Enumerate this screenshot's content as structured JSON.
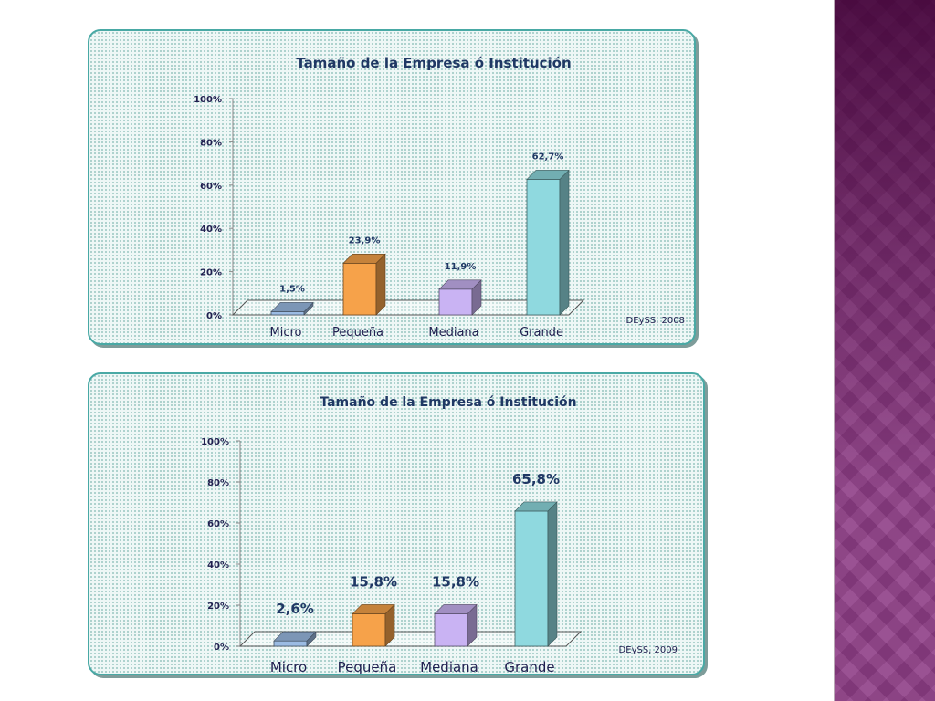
{
  "colors": {
    "side_band": "#8e3d86",
    "panel_border": "#49a9a5",
    "bar_micro": "#9bbbe3",
    "bar_pequena": "#f6a24a",
    "bar_mediana": "#c9b3f3",
    "bar_grande": "#8fd9df"
  },
  "chart_data": [
    {
      "type": "bar",
      "title": "Tamaño de la Empresa ó Institución",
      "categories": [
        "Micro",
        "Pequeña",
        "Mediana",
        "Grande"
      ],
      "values": [
        1.5,
        23.9,
        11.9,
        62.7
      ],
      "data_labels": [
        "1,5%",
        "23,9%",
        "11,9%",
        "62,7%"
      ],
      "yticks": [
        "0%",
        "20%",
        "40%",
        "60%",
        "80%",
        "100%"
      ],
      "ylim": [
        0,
        100
      ],
      "source": "DEySS, 2008",
      "style": "3d-columns",
      "legend": "none"
    },
    {
      "type": "bar",
      "title": "Tamaño de la Empresa ó Institución",
      "categories": [
        "Micro",
        "Pequeña",
        "Mediana",
        "Grande"
      ],
      "values": [
        2.6,
        15.8,
        15.8,
        65.8
      ],
      "data_labels": [
        "2,6%",
        "15,8%",
        "15,8%",
        "65,8%"
      ],
      "yticks": [
        "0%",
        "20%",
        "40%",
        "60%",
        "80%",
        "100%"
      ],
      "ylim": [
        0,
        100
      ],
      "source": "DEySS, 2009",
      "style": "3d-columns",
      "legend": "none"
    }
  ]
}
